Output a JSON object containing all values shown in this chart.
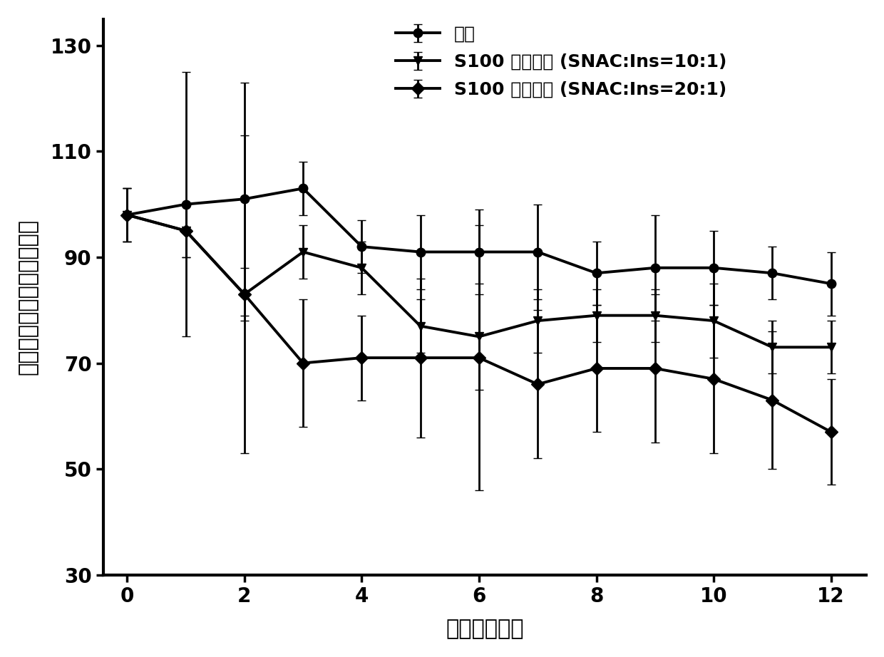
{
  "x": [
    0,
    1,
    2,
    3,
    4,
    5,
    6,
    7,
    8,
    9,
    10,
    11,
    12
  ],
  "control_y": [
    98,
    100,
    101,
    103,
    92,
    91,
    91,
    91,
    87,
    88,
    88,
    87,
    85
  ],
  "control_err": [
    5,
    25,
    22,
    5,
    5,
    7,
    8,
    9,
    6,
    10,
    7,
    5,
    6
  ],
  "s100_10_y": [
    98,
    95,
    83,
    91,
    88,
    77,
    75,
    78,
    79,
    79,
    78,
    73,
    73
  ],
  "s100_10_err": [
    5,
    5,
    5,
    5,
    5,
    5,
    10,
    6,
    5,
    5,
    7,
    5,
    5
  ],
  "s100_20_y": [
    98,
    95,
    83,
    70,
    71,
    71,
    71,
    66,
    69,
    69,
    67,
    63,
    57
  ],
  "s100_20_err": [
    5,
    5,
    30,
    12,
    8,
    15,
    25,
    14,
    12,
    14,
    14,
    13,
    10
  ],
  "xlabel": "时间（小时）",
  "ylabel": "血糖水平（起始的百分比）",
  "legend_control": "对照",
  "legend_10": "S100 肠溶胶囊 (SNAC:Ins=10:1)",
  "legend_20": "S100 肠溶胶囊 (SNAC:Ins=20:1)",
  "ylim": [
    30,
    135
  ],
  "yticks": [
    30,
    50,
    70,
    90,
    110,
    130
  ],
  "xticks": [
    0,
    2,
    4,
    6,
    8,
    10,
    12
  ],
  "background_color": "#ffffff",
  "line_color": "#000000"
}
